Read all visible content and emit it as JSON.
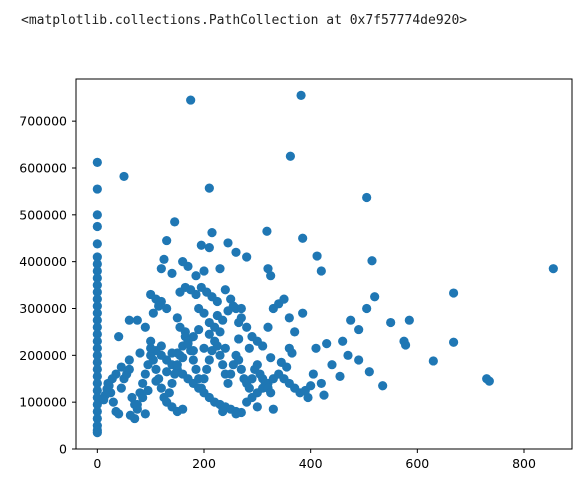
{
  "output": {
    "repr": "<matplotlib.collections.PathCollection at 0x7f57774de920>"
  },
  "colors": {
    "marker": "#1f77b4",
    "axes": "#000000",
    "background": "#ffffff"
  },
  "chart_data": {
    "type": "scatter",
    "title": "",
    "xlabel": "",
    "ylabel": "",
    "xlim": [
      -40,
      890
    ],
    "ylim": [
      0,
      790000
    ],
    "xticks": [
      0,
      200,
      400,
      600,
      800
    ],
    "xtick_labels": [
      "0",
      "200",
      "400",
      "600",
      "800"
    ],
    "yticks": [
      0,
      100000,
      200000,
      300000,
      400000,
      500000,
      600000,
      700000
    ],
    "ytick_labels": [
      "0",
      "100000",
      "200000",
      "300000",
      "400000",
      "500000",
      "600000",
      "700000"
    ],
    "grid": false,
    "legend": "none",
    "series": [
      {
        "points": [
          [
            0,
            612000
          ],
          [
            0,
            555000
          ],
          [
            0,
            500000
          ],
          [
            0,
            475000
          ],
          [
            0,
            438000
          ],
          [
            0,
            410000
          ],
          [
            0,
            395000
          ],
          [
            0,
            380000
          ],
          [
            0,
            365000
          ],
          [
            0,
            350000
          ],
          [
            0,
            335000
          ],
          [
            0,
            320000
          ],
          [
            0,
            305000
          ],
          [
            0,
            290000
          ],
          [
            0,
            275000
          ],
          [
            0,
            260000
          ],
          [
            0,
            245000
          ],
          [
            0,
            230000
          ],
          [
            0,
            215000
          ],
          [
            0,
            200000
          ],
          [
            0,
            185000
          ],
          [
            0,
            170000
          ],
          [
            0,
            155000
          ],
          [
            0,
            140000
          ],
          [
            0,
            125000
          ],
          [
            0,
            110000
          ],
          [
            0,
            95000
          ],
          [
            0,
            80000
          ],
          [
            0,
            65000
          ],
          [
            0,
            50000
          ],
          [
            0,
            40000
          ],
          [
            0,
            35000
          ],
          [
            175,
            745000
          ],
          [
            382,
            755000
          ],
          [
            362,
            625000
          ],
          [
            210,
            557000
          ],
          [
            50,
            582000
          ],
          [
            145,
            485000
          ],
          [
            505,
            537000
          ],
          [
            515,
            402000
          ],
          [
            318,
            465000
          ],
          [
            215,
            462000
          ],
          [
            245,
            440000
          ],
          [
            130,
            445000
          ],
          [
            195,
            435000
          ],
          [
            385,
            450000
          ],
          [
            210,
            430000
          ],
          [
            260,
            420000
          ],
          [
            280,
            410000
          ],
          [
            412,
            412000
          ],
          [
            125,
            405000
          ],
          [
            160,
            400000
          ],
          [
            170,
            390000
          ],
          [
            200,
            380000
          ],
          [
            230,
            385000
          ],
          [
            120,
            385000
          ],
          [
            140,
            375000
          ],
          [
            320,
            385000
          ],
          [
            325,
            370000
          ],
          [
            420,
            380000
          ],
          [
            185,
            370000
          ],
          [
            855,
            385000
          ],
          [
            668,
            333000
          ],
          [
            520,
            325000
          ],
          [
            505,
            300000
          ],
          [
            550,
            270000
          ],
          [
            585,
            275000
          ],
          [
            475,
            275000
          ],
          [
            490,
            255000
          ],
          [
            385,
            290000
          ],
          [
            460,
            230000
          ],
          [
            575,
            230000
          ],
          [
            578,
            222000
          ],
          [
            668,
            228000
          ],
          [
            630,
            188000
          ],
          [
            730,
            150000
          ],
          [
            735,
            145000
          ],
          [
            535,
            135000
          ],
          [
            510,
            165000
          ],
          [
            440,
            180000
          ],
          [
            470,
            200000
          ],
          [
            455,
            155000
          ],
          [
            420,
            140000
          ],
          [
            405,
            160000
          ],
          [
            395,
            110000
          ],
          [
            425,
            115000
          ],
          [
            490,
            190000
          ],
          [
            410,
            215000
          ],
          [
            365,
            205000
          ],
          [
            360,
            215000
          ],
          [
            430,
            225000
          ],
          [
            40,
            240000
          ],
          [
            60,
            275000
          ],
          [
            75,
            275000
          ],
          [
            90,
            260000
          ],
          [
            100,
            330000
          ],
          [
            110,
            320000
          ],
          [
            120,
            315000
          ],
          [
            130,
            300000
          ],
          [
            150,
            280000
          ],
          [
            155,
            260000
          ],
          [
            165,
            250000
          ],
          [
            180,
            240000
          ],
          [
            190,
            300000
          ],
          [
            200,
            290000
          ],
          [
            210,
            270000
          ],
          [
            220,
            260000
          ],
          [
            230,
            250000
          ],
          [
            240,
            340000
          ],
          [
            250,
            320000
          ],
          [
            260,
            300000
          ],
          [
            270,
            280000
          ],
          [
            280,
            260000
          ],
          [
            290,
            240000
          ],
          [
            300,
            230000
          ],
          [
            310,
            220000
          ],
          [
            320,
            260000
          ],
          [
            330,
            300000
          ],
          [
            340,
            310000
          ],
          [
            350,
            320000
          ],
          [
            360,
            280000
          ],
          [
            370,
            250000
          ],
          [
            100,
            230000
          ],
          [
            110,
            210000
          ],
          [
            120,
            200000
          ],
          [
            130,
            190000
          ],
          [
            140,
            180000
          ],
          [
            150,
            170000
          ],
          [
            160,
            160000
          ],
          [
            170,
            150000
          ],
          [
            180,
            140000
          ],
          [
            190,
            130000
          ],
          [
            200,
            120000
          ],
          [
            210,
            110000
          ],
          [
            220,
            100000
          ],
          [
            230,
            95000
          ],
          [
            240,
            90000
          ],
          [
            250,
            85000
          ],
          [
            260,
            80000
          ],
          [
            270,
            78000
          ],
          [
            280,
            100000
          ],
          [
            290,
            110000
          ],
          [
            300,
            120000
          ],
          [
            310,
            130000
          ],
          [
            320,
            140000
          ],
          [
            330,
            150000
          ],
          [
            340,
            160000
          ],
          [
            350,
            150000
          ],
          [
            360,
            140000
          ],
          [
            370,
            130000
          ],
          [
            380,
            120000
          ],
          [
            390,
            125000
          ],
          [
            400,
            135000
          ],
          [
            20,
            140000
          ],
          [
            25,
            120000
          ],
          [
            30,
            100000
          ],
          [
            35,
            80000
          ],
          [
            40,
            75000
          ],
          [
            45,
            130000
          ],
          [
            50,
            150000
          ],
          [
            55,
            160000
          ],
          [
            60,
            170000
          ],
          [
            65,
            110000
          ],
          [
            70,
            95000
          ],
          [
            75,
            85000
          ],
          [
            80,
            120000
          ],
          [
            85,
            140000
          ],
          [
            90,
            160000
          ],
          [
            95,
            180000
          ],
          [
            100,
            200000
          ],
          [
            105,
            190000
          ],
          [
            110,
            170000
          ],
          [
            115,
            150000
          ],
          [
            120,
            130000
          ],
          [
            125,
            110000
          ],
          [
            130,
            100000
          ],
          [
            135,
            120000
          ],
          [
            140,
            140000
          ],
          [
            145,
            160000
          ],
          [
            150,
            180000
          ],
          [
            155,
            200000
          ],
          [
            160,
            220000
          ],
          [
            165,
            240000
          ],
          [
            170,
            230000
          ],
          [
            175,
            210000
          ],
          [
            180,
            190000
          ],
          [
            185,
            170000
          ],
          [
            190,
            150000
          ],
          [
            195,
            130000
          ],
          [
            200,
            150000
          ],
          [
            205,
            170000
          ],
          [
            210,
            190000
          ],
          [
            215,
            210000
          ],
          [
            220,
            230000
          ],
          [
            225,
            220000
          ],
          [
            230,
            200000
          ],
          [
            235,
            180000
          ],
          [
            240,
            160000
          ],
          [
            245,
            140000
          ],
          [
            250,
            160000
          ],
          [
            255,
            180000
          ],
          [
            260,
            200000
          ],
          [
            265,
            190000
          ],
          [
            270,
            170000
          ],
          [
            275,
            150000
          ],
          [
            280,
            140000
          ],
          [
            285,
            130000
          ],
          [
            290,
            150000
          ],
          [
            295,
            170000
          ],
          [
            300,
            180000
          ],
          [
            305,
            160000
          ],
          [
            310,
            150000
          ],
          [
            315,
            140000
          ],
          [
            320,
            130000
          ],
          [
            325,
            120000
          ],
          [
            270,
            300000
          ],
          [
            255,
            305000
          ],
          [
            245,
            295000
          ],
          [
            225,
            315000
          ],
          [
            215,
            325000
          ],
          [
            205,
            335000
          ],
          [
            195,
            345000
          ],
          [
            185,
            330000
          ],
          [
            175,
            340000
          ],
          [
            165,
            345000
          ],
          [
            155,
            335000
          ],
          [
            235,
            275000
          ],
          [
            265,
            270000
          ],
          [
            225,
            285000
          ],
          [
            105,
            290000
          ],
          [
            115,
            305000
          ],
          [
            265,
            235000
          ],
          [
            285,
            215000
          ],
          [
            325,
            195000
          ],
          [
            345,
            185000
          ],
          [
            355,
            175000
          ],
          [
            330,
            85000
          ],
          [
            260,
            75000
          ],
          [
            235,
            80000
          ],
          [
            300,
            90000
          ],
          [
            140,
            90000
          ],
          [
            150,
            80000
          ],
          [
            160,
            85000
          ],
          [
            90,
            75000
          ],
          [
            70,
            65000
          ],
          [
            62,
            72000
          ],
          [
            85,
            110000
          ],
          [
            75,
            95000
          ],
          [
            95,
            125000
          ],
          [
            110,
            145000
          ],
          [
            130,
            165000
          ],
          [
            150,
            205000
          ],
          [
            170,
            225000
          ],
          [
            190,
            255000
          ],
          [
            210,
            245000
          ],
          [
            240,
            215000
          ],
          [
            200,
            215000
          ],
          [
            180,
            210000
          ],
          [
            160,
            195000
          ],
          [
            140,
            205000
          ],
          [
            120,
            220000
          ],
          [
            100,
            215000
          ],
          [
            80,
            205000
          ],
          [
            60,
            190000
          ],
          [
            45,
            175000
          ],
          [
            35,
            160000
          ],
          [
            28,
            150000
          ],
          [
            22,
            135000
          ],
          [
            18,
            128000
          ],
          [
            15,
            115000
          ],
          [
            12,
            105000
          ]
        ]
      }
    ]
  }
}
